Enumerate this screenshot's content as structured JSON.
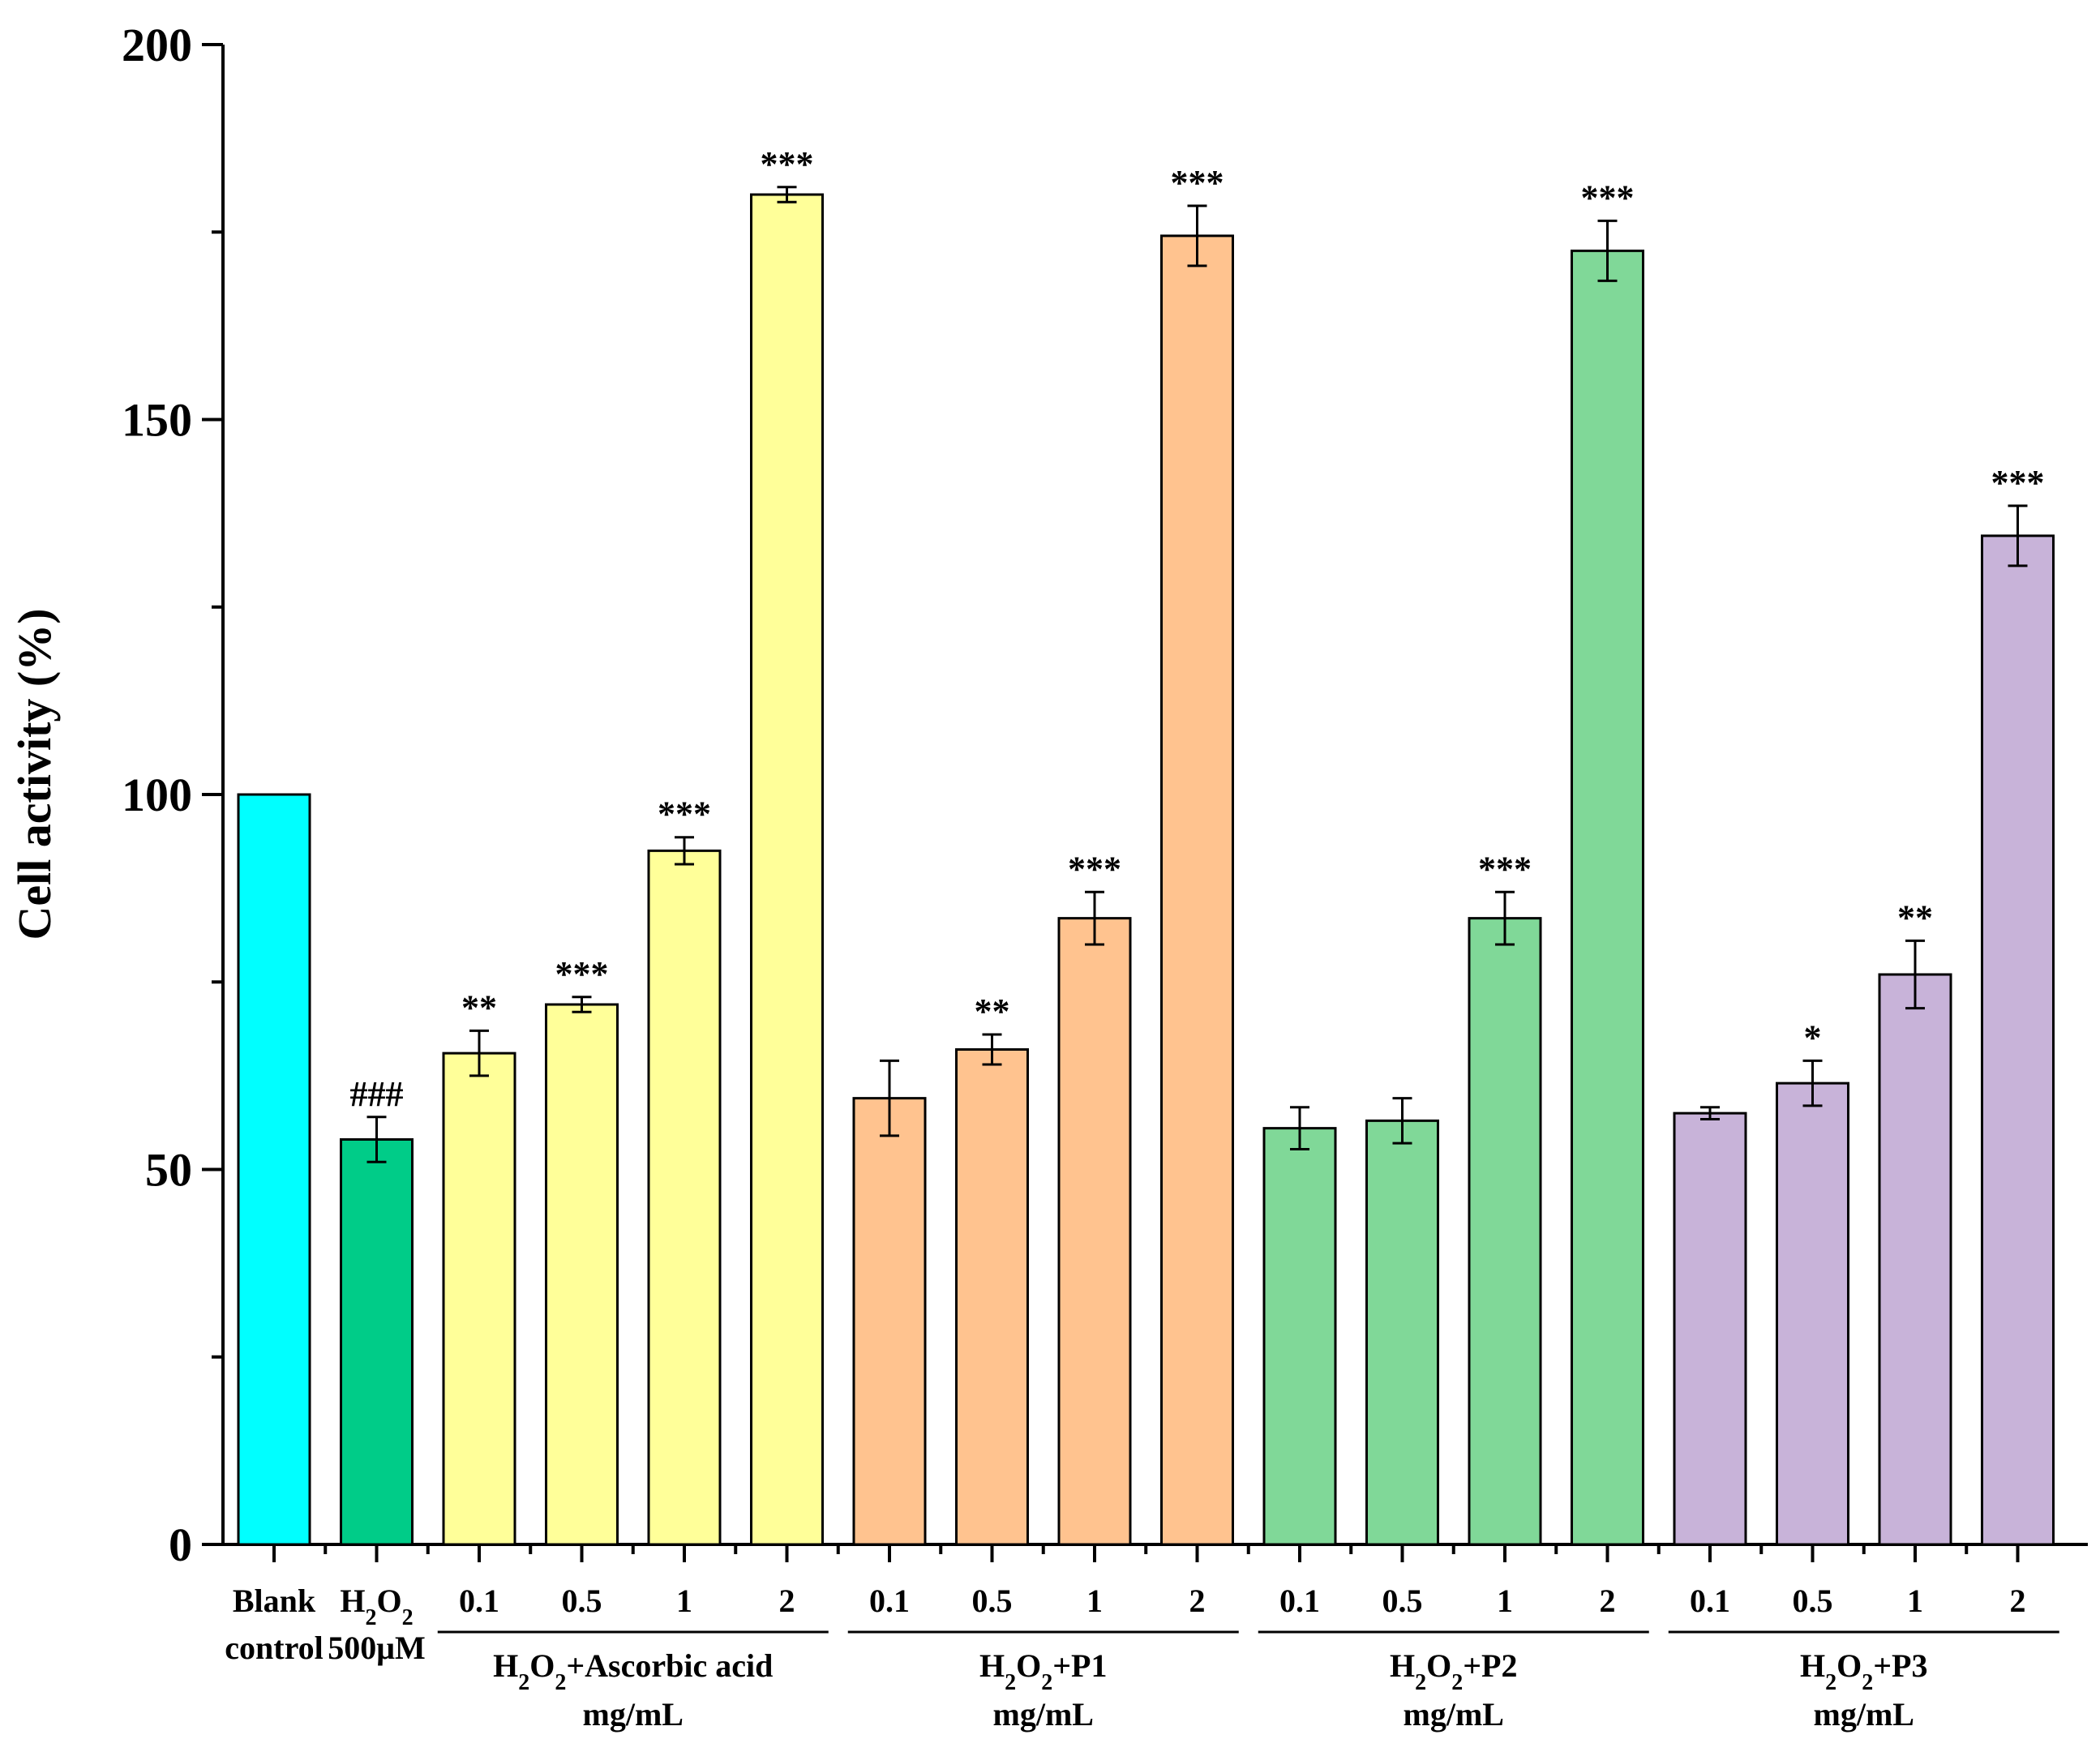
{
  "chart_data": {
    "type": "bar",
    "ylabel": "Cell activity (%)",
    "xlabel": "",
    "ylim": [
      0,
      200
    ],
    "yticks": [
      0,
      50,
      100,
      150,
      200
    ],
    "grid": false,
    "bars": [
      {
        "label": "Blank\ncontrol",
        "value": 100,
        "error": 0,
        "sig": "",
        "group": null,
        "color": "#00ffff"
      },
      {
        "label": "H2O2\n500μM",
        "value": 54,
        "error": 3,
        "sig": "###",
        "group": null,
        "color": "#00cc88"
      },
      {
        "label": "0.1",
        "value": 65.5,
        "error": 3,
        "sig": "**",
        "group": 0,
        "color": "#ffff99"
      },
      {
        "label": "0.5",
        "value": 72,
        "error": 1,
        "sig": "***",
        "group": 0,
        "color": "#ffff99"
      },
      {
        "label": "1",
        "value": 92.5,
        "error": 1.8,
        "sig": "***",
        "group": 0,
        "color": "#ffff99"
      },
      {
        "label": "2",
        "value": 180,
        "error": 1,
        "sig": "***",
        "group": 0,
        "color": "#ffff99"
      },
      {
        "label": "0.1",
        "value": 59.5,
        "error": 5,
        "sig": "",
        "group": 1,
        "color": "#ffc38f"
      },
      {
        "label": "0.5",
        "value": 66,
        "error": 2,
        "sig": "**",
        "group": 1,
        "color": "#ffc38f"
      },
      {
        "label": "1",
        "value": 83.5,
        "error": 3.5,
        "sig": "***",
        "group": 1,
        "color": "#ffc38f"
      },
      {
        "label": "2",
        "value": 174.5,
        "error": 4,
        "sig": "***",
        "group": 1,
        "color": "#ffc38f"
      },
      {
        "label": "0.1",
        "value": 55.5,
        "error": 2.8,
        "sig": "",
        "group": 2,
        "color": "#80d898"
      },
      {
        "label": "0.5",
        "value": 56.5,
        "error": 3,
        "sig": "",
        "group": 2,
        "color": "#80d898"
      },
      {
        "label": "1",
        "value": 83.5,
        "error": 3.5,
        "sig": "***",
        "group": 2,
        "color": "#80d898"
      },
      {
        "label": "2",
        "value": 172.5,
        "error": 4,
        "sig": "***",
        "group": 2,
        "color": "#80d898"
      },
      {
        "label": "0.1",
        "value": 57.5,
        "error": 0.8,
        "sig": "",
        "group": 3,
        "color": "#c8b3d9"
      },
      {
        "label": "0.5",
        "value": 61.5,
        "error": 3,
        "sig": "*",
        "group": 3,
        "color": "#c8b3d9"
      },
      {
        "label": "1",
        "value": 76,
        "error": 4.5,
        "sig": "**",
        "group": 3,
        "color": "#c8b3d9"
      },
      {
        "label": "2",
        "value": 134.5,
        "error": 4,
        "sig": "***",
        "group": 3,
        "color": "#c8b3d9"
      }
    ],
    "groups": [
      {
        "label": "H2O2+Ascorbic acid",
        "unit": "mg/mL"
      },
      {
        "label": "H2O2+P1",
        "unit": "mg/mL"
      },
      {
        "label": "H2O2+P2",
        "unit": "mg/mL"
      },
      {
        "label": "H2O2+P3",
        "unit": "mg/mL"
      }
    ]
  }
}
